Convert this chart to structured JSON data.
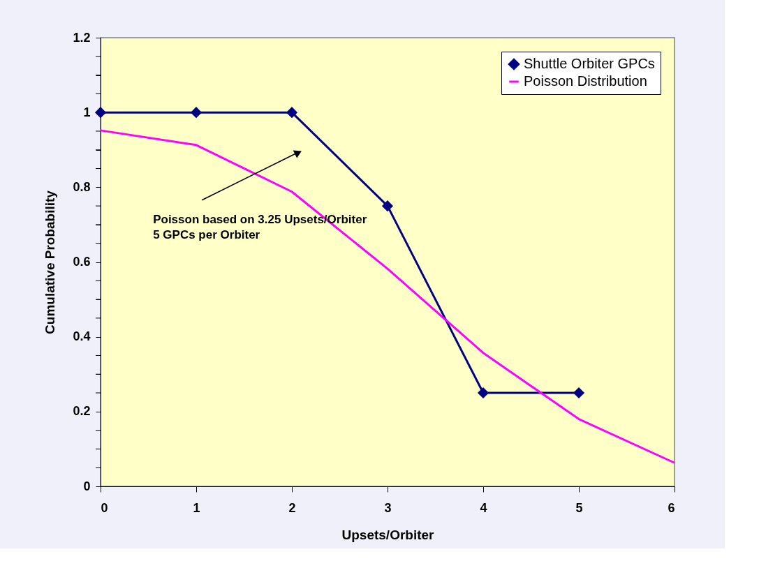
{
  "chart_data": {
    "type": "line",
    "xlabel": "Upsets/Orbiter",
    "ylabel": "Cumulative Probability",
    "x": [
      0,
      1,
      2,
      3,
      4,
      5,
      6
    ],
    "series": [
      {
        "name": "Shuttle Orbiter GPCs",
        "color": "#000080",
        "marker": "diamond",
        "x": [
          0,
          1,
          2,
          3,
          4,
          5
        ],
        "values": [
          1,
          1,
          1,
          0.75,
          0.25,
          0.25
        ]
      },
      {
        "name": "Poisson Distribution",
        "color": "#ff00ff",
        "marker": "none",
        "values": [
          0.952,
          0.913,
          0.788,
          0.582,
          0.357,
          0.18,
          0.063
        ]
      }
    ],
    "xlim": [
      0,
      6
    ],
    "xticks": [
      0,
      1,
      2,
      3,
      4,
      5,
      6
    ],
    "ylim": [
      0,
      1.2
    ],
    "yticks": [
      0,
      {
        "value": 0.05,
        "label": null
      },
      {
        "value": 0.1,
        "label": null
      },
      {
        "value": 0.15,
        "label": null
      },
      0.2,
      {
        "value": 0.25,
        "label": null
      },
      {
        "value": 0.3,
        "label": null
      },
      {
        "value": 0.35,
        "label": null
      },
      0.4,
      {
        "value": 0.45,
        "label": null
      },
      {
        "value": 0.5,
        "label": null
      },
      {
        "value": 0.55,
        "label": null
      },
      0.6,
      {
        "value": 0.65,
        "label": null
      },
      {
        "value": 0.7,
        "label": null
      },
      {
        "value": 0.75,
        "label": null
      },
      0.8,
      {
        "value": 0.85,
        "label": null
      },
      {
        "value": 0.9,
        "label": null
      },
      {
        "value": 0.95,
        "label": null
      },
      1,
      {
        "value": 1.05,
        "label": null
      },
      {
        "value": 1.1,
        "label": null
      },
      {
        "value": 1.15,
        "label": null
      },
      1.2
    ],
    "annotations": [
      "Poisson based on 3.25 Upsets/Orbiter\n 5 GPCs per Orbiter"
    ],
    "line_style": "solid",
    "grid": false,
    "legend": "top right"
  }
}
